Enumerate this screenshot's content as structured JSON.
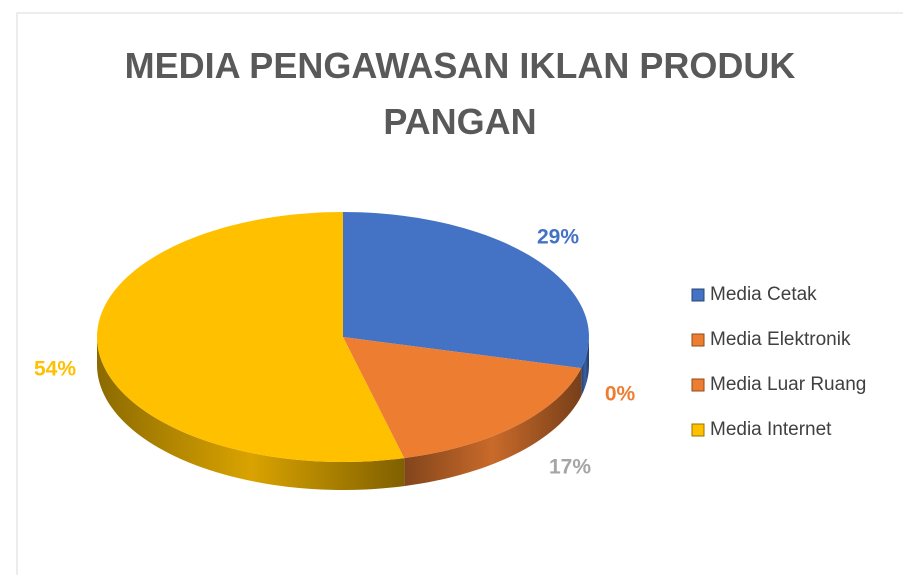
{
  "chart_data": {
    "type": "pie",
    "title": "MEDIA PENGAWASAN IKLAN PRODUK PANGAN",
    "categories": [
      "Media Cetak",
      "Media Elektronik",
      "Media Luar Ruang",
      "Media Internet"
    ],
    "values": [
      29,
      0,
      17,
      54
    ],
    "value_labels": [
      "29%",
      "0%",
      "17%",
      "54%"
    ],
    "colors": [
      "#4472c4",
      "#ed7d31",
      "#ed7d31",
      "#ffc000"
    ],
    "label_colors": [
      "#4472c4",
      "#ed7d31",
      "#a5a5a5",
      "#ffc000"
    ],
    "legend": "right"
  }
}
